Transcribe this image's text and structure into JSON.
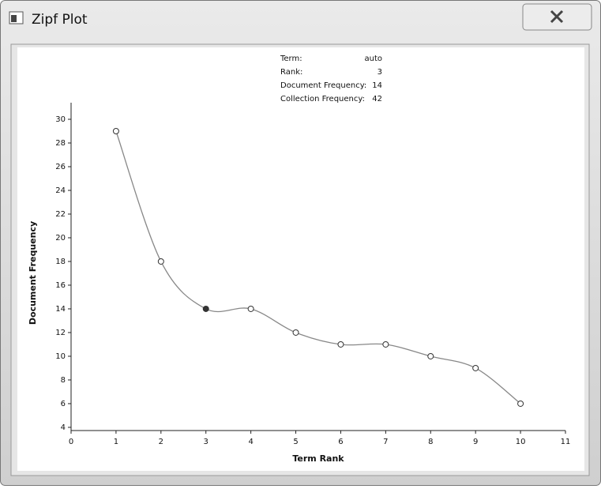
{
  "window": {
    "title": "Zipf Plot"
  },
  "chart_data": {
    "type": "line",
    "x_label": "Term Rank",
    "y_label": "Document Frequency",
    "x": [
      1,
      2,
      3,
      4,
      5,
      6,
      7,
      8,
      9,
      10
    ],
    "series": [
      {
        "name": "Document Frequency",
        "color": "#888888",
        "values": [
          29,
          18,
          14,
          14,
          12,
          11,
          11,
          10,
          9,
          6
        ]
      }
    ],
    "xlim": [
      0,
      11
    ],
    "xticks": [
      0,
      1,
      2,
      3,
      4,
      5,
      6,
      7,
      8,
      9,
      10,
      11
    ],
    "ylim": [
      3.73,
      31.4
    ],
    "yticks": [
      4,
      6,
      8,
      10,
      12,
      14,
      16,
      18,
      20,
      22,
      24,
      26,
      28,
      30
    ],
    "smooth": true,
    "tooltip": {
      "rows": [
        [
          "Term:",
          "auto"
        ],
        [
          "Rank:",
          3
        ],
        [
          "Document Frequency:",
          14
        ],
        [
          "Collection Frequency:",
          42
        ]
      ]
    }
  }
}
